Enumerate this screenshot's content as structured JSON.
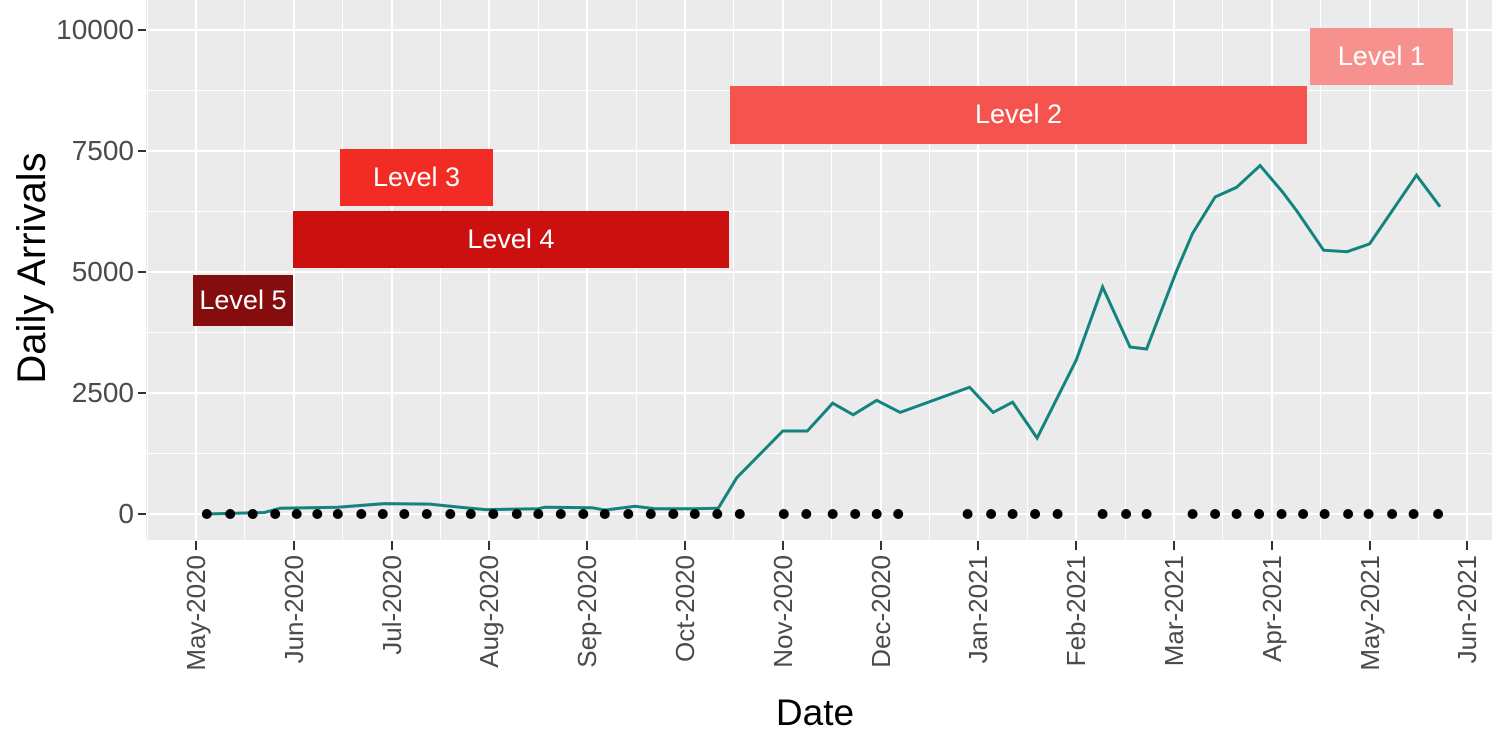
{
  "figure": {
    "y_axis_title": "Daily Arrivals",
    "x_axis_title": "Date"
  },
  "chart_data": {
    "type": "line",
    "title": "",
    "xlabel": "Date",
    "ylabel": "Daily Arrivals",
    "panel_bg": "#EBEBEB",
    "grid": "white major and minor gridlines on gray panel, grid on",
    "legend": "none",
    "x_tick_labels": [
      "May-2020",
      "Jun-2020",
      "Jul-2020",
      "Aug-2020",
      "Sep-2020",
      "Oct-2020",
      "Nov-2020",
      "Dec-2020",
      "Jan-2021",
      "Feb-2021",
      "Mar-2021",
      "Apr-2021",
      "May-2021",
      "Jun-2021"
    ],
    "y_tick_labels": [
      "0",
      "2500",
      "5000",
      "7500",
      "10000"
    ],
    "y_ticks": [
      0,
      2500,
      5000,
      7500,
      10000
    ],
    "y_minor_ticks": [
      1250,
      3750,
      6250,
      8750
    ],
    "ylim": [
      -540,
      10620
    ],
    "xlim_months": [
      -0.51,
      13.25
    ],
    "series": [
      {
        "name": "daily-arrivals",
        "color": "#12837D",
        "points_t_months_from_May2020": [
          [
            0.09,
            0
          ],
          [
            0.7,
            30
          ],
          [
            0.86,
            120
          ],
          [
            1.45,
            140
          ],
          [
            1.93,
            215
          ],
          [
            2.39,
            205
          ],
          [
            2.7,
            140
          ],
          [
            2.96,
            90
          ],
          [
            3.5,
            110
          ],
          [
            3.57,
            140
          ],
          [
            4.05,
            130
          ],
          [
            4.18,
            80
          ],
          [
            4.49,
            160
          ],
          [
            4.69,
            110
          ],
          [
            5.1,
            110
          ],
          [
            5.34,
            120
          ],
          [
            5.53,
            750
          ],
          [
            6.0,
            1715
          ],
          [
            6.25,
            1715
          ],
          [
            6.51,
            2290
          ],
          [
            6.72,
            2050
          ],
          [
            6.96,
            2350
          ],
          [
            7.2,
            2100
          ],
          [
            7.91,
            2620
          ],
          [
            8.15,
            2100
          ],
          [
            8.35,
            2310
          ],
          [
            8.6,
            1570
          ],
          [
            9.0,
            3180
          ],
          [
            9.27,
            4690
          ],
          [
            9.55,
            3450
          ],
          [
            9.72,
            3410
          ],
          [
            10.03,
            5040
          ],
          [
            10.19,
            5800
          ],
          [
            10.42,
            6550
          ],
          [
            10.64,
            6750
          ],
          [
            10.88,
            7200
          ],
          [
            11.11,
            6650
          ],
          [
            11.26,
            6250
          ],
          [
            11.53,
            5450
          ],
          [
            11.77,
            5420
          ],
          [
            12.0,
            5580
          ],
          [
            12.48,
            7000
          ],
          [
            12.72,
            6350
          ]
        ]
      }
    ],
    "zero_markers": {
      "name": "weekly-zero-dots",
      "color": "#000000",
      "value": 0,
      "t_months_from_May2020": [
        0.11,
        0.35,
        0.58,
        0.81,
        1.03,
        1.24,
        1.45,
        1.69,
        1.91,
        2.13,
        2.36,
        2.6,
        2.81,
        3.04,
        3.28,
        3.5,
        3.73,
        3.96,
        4.18,
        4.42,
        4.65,
        4.88,
        5.1,
        5.33,
        5.56,
        6.01,
        6.24,
        6.51,
        6.74,
        6.96,
        7.18,
        7.89,
        8.13,
        8.35,
        8.58,
        8.81,
        9.27,
        9.51,
        9.72,
        10.19,
        10.42,
        10.64,
        10.87,
        11.1,
        11.32,
        11.54,
        11.78,
        11.99,
        12.23,
        12.45,
        12.7
      ]
    },
    "alert_bands": [
      {
        "label": "Level 5",
        "color": "#850D0D",
        "t0": -0.03,
        "t1": 0.99,
        "v0": 3880,
        "v1": 4940
      },
      {
        "label": "Level 4",
        "color": "#CC1010",
        "t0": 0.99,
        "t1": 5.45,
        "v0": 5080,
        "v1": 6260
      },
      {
        "label": "Level 3",
        "color": "#F32B25",
        "t0": 1.47,
        "t1": 3.04,
        "v0": 6360,
        "v1": 7540
      },
      {
        "label": "Level 2",
        "color": "#F5544E",
        "t0": 5.46,
        "t1": 11.36,
        "v0": 7650,
        "v1": 8840
      },
      {
        "label": "Level 1",
        "color": "#F7918D",
        "t0": 11.39,
        "t1": 12.85,
        "v0": 8860,
        "v1": 10040
      }
    ]
  }
}
